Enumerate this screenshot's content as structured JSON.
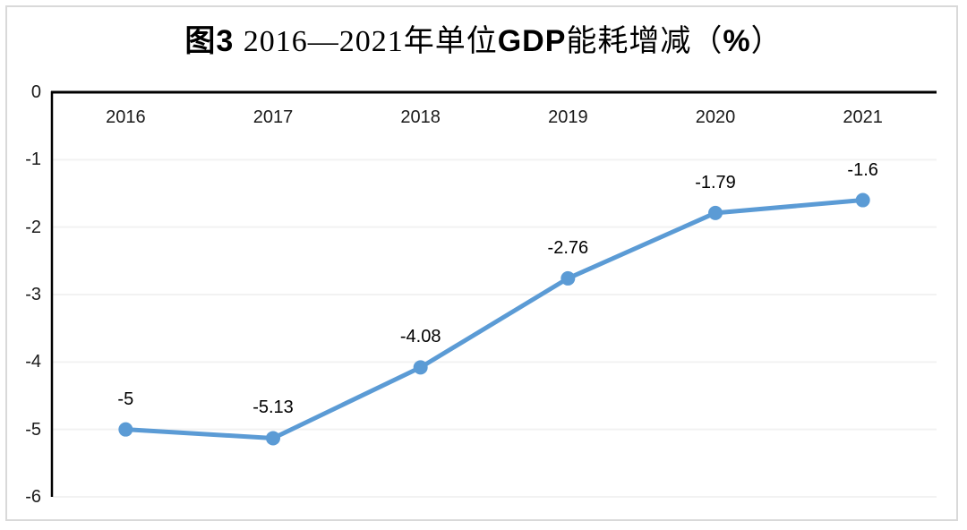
{
  "title_segments": [
    {
      "text": "图3 ",
      "bold": true
    },
    {
      "text": "2016—2021年单位",
      "bold": false
    },
    {
      "text": "GDP",
      "bold": true
    },
    {
      "text": "能耗增减（",
      "bold": false
    },
    {
      "text": "%",
      "bold": true
    },
    {
      "text": "）",
      "bold": false
    }
  ],
  "chart_data": {
    "type": "line",
    "title": "图3 2016—2021年单位GDP能耗增减（%）",
    "categories": [
      "2016",
      "2017",
      "2018",
      "2019",
      "2020",
      "2021"
    ],
    "values": [
      -5,
      -5.13,
      -4.08,
      -2.76,
      -1.79,
      -1.6
    ],
    "point_labels": [
      "-5",
      "-5.13",
      "-4.08",
      "-2.76",
      "-1.79",
      "-1.6"
    ],
    "yticks": [
      0,
      -1,
      -2,
      -3,
      -4,
      -5,
      -6
    ],
    "ytick_labels": [
      "0",
      "-1",
      "-2",
      "-3",
      "-4",
      "-5",
      "-6"
    ],
    "ylim": [
      -6,
      0
    ],
    "xlabel": "",
    "ylabel": "",
    "grid": true,
    "legend": false,
    "line_color": "#5b9bd5",
    "marker": "circle",
    "axis_color": "#000000",
    "gridline_color": "#f2f2f2",
    "frame_border_color": "#d9d9d9",
    "background": "#ffffff"
  }
}
